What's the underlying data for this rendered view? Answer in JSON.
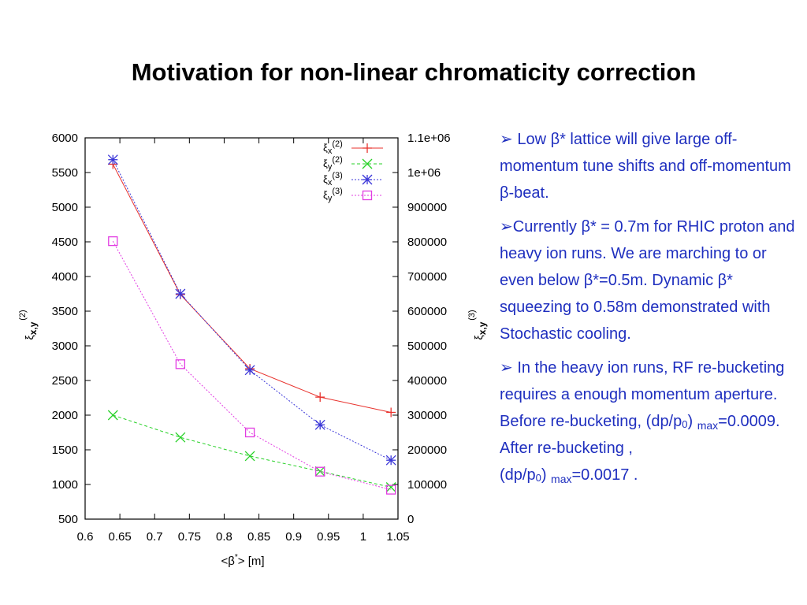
{
  "slide": {
    "title": "Motivation for non-linear chromaticity correction"
  },
  "chart_data": {
    "type": "line",
    "xlabel_base": "<β",
    "xlabel_sup": "*",
    "xlabel_tail": "> [m]",
    "ylabel_left": {
      "base": "ξ",
      "sub": "x,y",
      "sup": "(2)"
    },
    "ylabel_right": {
      "base": "ξ",
      "sub": "x,y",
      "sup": "(3)"
    },
    "xlim": [
      0.6,
      1.05
    ],
    "ylim_left": [
      500,
      6000
    ],
    "ylim_right": [
      0,
      1100000
    ],
    "x_ticks": [
      "0.6",
      "0.65",
      "0.7",
      "0.75",
      "0.8",
      "0.85",
      "0.9",
      "0.95",
      "1",
      "1.05"
    ],
    "x_tick_values": [
      0.6,
      0.65,
      0.7,
      0.75,
      0.8,
      0.85,
      0.9,
      0.95,
      1.0,
      1.05
    ],
    "y_left_ticks": [
      "6000",
      "5500",
      "5000",
      "4500",
      "4000",
      "3500",
      "3000",
      "2500",
      "2000",
      "1500",
      "1000",
      "500"
    ],
    "y_left_values": [
      6000,
      5500,
      5000,
      4500,
      4000,
      3500,
      3000,
      2500,
      2000,
      1500,
      1000,
      500
    ],
    "y_right_ticks": [
      "1.1e+06",
      "1e+06",
      "900000",
      "800000",
      "700000",
      "600000",
      "500000",
      "400000",
      "300000",
      "200000",
      "100000",
      "0"
    ],
    "y_right_values": [
      1100000,
      1000000,
      900000,
      800000,
      700000,
      600000,
      500000,
      400000,
      300000,
      200000,
      100000,
      0
    ],
    "grid": false,
    "legend_position": "top-right",
    "series": [
      {
        "legend_base": "ξ",
        "legend_sub": "x",
        "legend_sup": "(2)",
        "axis": "left",
        "color": "#e8322d",
        "marker": "plus",
        "dash": "solid",
        "x": [
          0.64,
          0.737,
          0.837,
          0.938,
          1.04
        ],
        "y": [
          5620,
          3740,
          2670,
          2260,
          2040
        ]
      },
      {
        "legend_base": "ξ",
        "legend_sub": "y",
        "legend_sup": "(2)",
        "axis": "left",
        "color": "#27d127",
        "marker": "cross",
        "dash": "dashed",
        "x": [
          0.64,
          0.737,
          0.837,
          0.938,
          1.04
        ],
        "y": [
          2000,
          1680,
          1410,
          1190,
          960
        ]
      },
      {
        "legend_base": "ξ",
        "legend_sub": "x",
        "legend_sup": "(3)",
        "axis": "right",
        "color": "#3a36d8",
        "marker": "star",
        "dash": "dotted",
        "x": [
          0.64,
          0.737,
          0.837,
          0.938,
          1.04
        ],
        "y": [
          1037000,
          650000,
          430000,
          272000,
          170000
        ]
      },
      {
        "legend_base": "ξ",
        "legend_sub": "y",
        "legend_sup": "(3)",
        "axis": "right",
        "color": "#e23ce2",
        "marker": "square",
        "dash": "dotted",
        "x": [
          0.64,
          0.737,
          0.837,
          0.938,
          1.04
        ],
        "y": [
          802000,
          447000,
          250000,
          137000,
          85000
        ]
      }
    ]
  },
  "bullets": [
    {
      "marker": "➢",
      "text": " Low β* lattice will give large off-momentum tune shifts and off-momentum β-beat."
    },
    {
      "marker": "➢",
      "text": "Currently β* = 0.7m for RHIC proton and heavy ion runs.  We are marching to or even below β*=0.5m.  Dynamic β* squeezing to 0.58m demonstrated with Stochastic cooling."
    },
    {
      "marker": "➢",
      "p1": " In the heavy ion runs, RF re-bucketing requires a enough momentum aperture.  Before re-bucketing, (dp/p",
      "sub1": "0",
      "p2": ") ",
      "max1": "max",
      "p3": "=0.0009.  After re-bucketing ,",
      "p4": "(dp/p",
      "sub2": "0",
      "p5": ") ",
      "max2": "max",
      "p6": "=0.0017 ."
    }
  ]
}
